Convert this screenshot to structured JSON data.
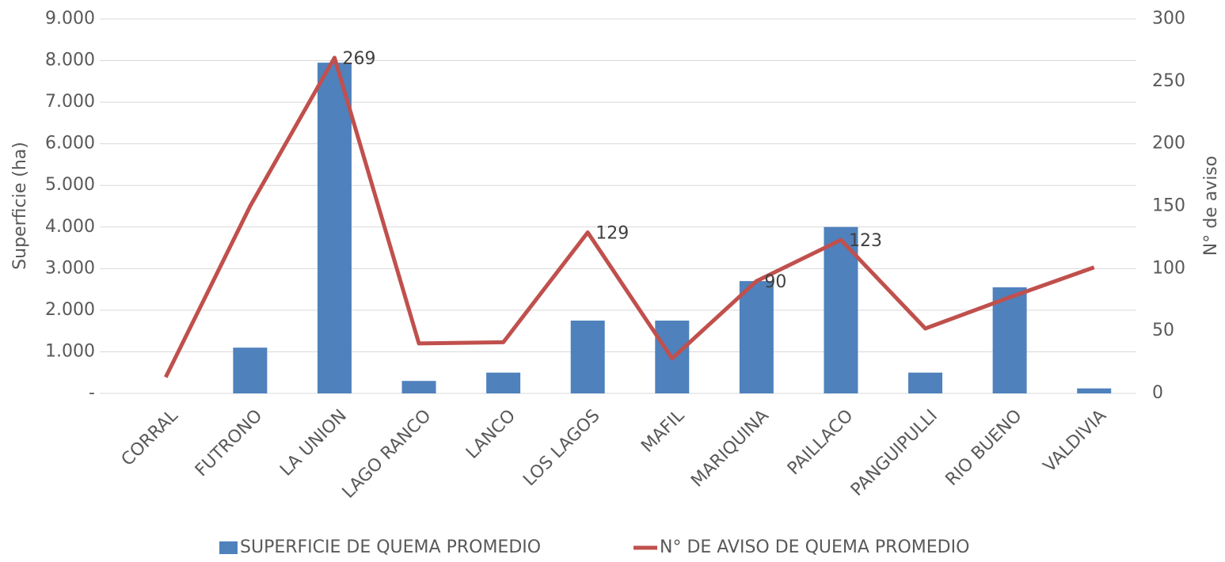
{
  "chart_data": {
    "type": "bar",
    "categories": [
      "CORRAL",
      "FUTRONO",
      "LA UNION",
      "LAGO RANCO",
      "LANCO",
      "LOS LAGOS",
      "MAFIL",
      "MARIQUINA",
      "PAILLACO",
      "PANGUIPULLI",
      "RIO BUENO",
      "VALDIVIA"
    ],
    "series": [
      {
        "name": "SUPERFICIE DE QUEMA PROMEDIO",
        "type": "bar",
        "color": "#4f81bd",
        "values": [
          0,
          1100,
          7950,
          300,
          500,
          1750,
          1750,
          2700,
          4000,
          500,
          2550,
          120
        ]
      },
      {
        "name": "N° DE AVISO DE QUEMA PROMEDIO",
        "type": "line",
        "axis": "y2",
        "color": "#c0504d",
        "values": [
          13,
          150,
          269,
          40,
          41,
          129,
          28,
          90,
          123,
          52,
          77,
          101
        ],
        "value_labels": [
          null,
          null,
          "269",
          null,
          null,
          "129",
          null,
          "90",
          "123",
          null,
          null,
          null
        ]
      }
    ],
    "ylabel": "Superficie (ha)",
    "y2label": "N° de aviso",
    "ylim": [
      0,
      9000
    ],
    "yticks": [
      {
        "value": 0,
        "label": "-"
      },
      {
        "value": 1000,
        "label": "1.000"
      },
      {
        "value": 2000,
        "label": "2.000"
      },
      {
        "value": 3000,
        "label": "3.000"
      },
      {
        "value": 4000,
        "label": "4.000"
      },
      {
        "value": 5000,
        "label": "5.000"
      },
      {
        "value": 6000,
        "label": "6.000"
      },
      {
        "value": 7000,
        "label": "7.000"
      },
      {
        "value": 8000,
        "label": "8.000"
      },
      {
        "value": 9000,
        "label": "9.000"
      }
    ],
    "y2lim": [
      0,
      300
    ],
    "y2ticks": [
      0,
      50,
      100,
      150,
      200,
      250,
      300
    ],
    "grid": true,
    "legend": "bottom"
  }
}
